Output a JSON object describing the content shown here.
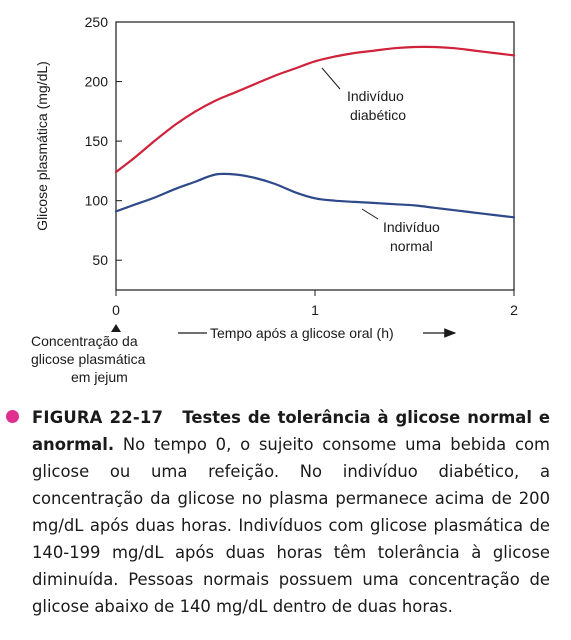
{
  "chart_data": {
    "type": "line",
    "ylabel": "Glicose plasmática (mg/dL)",
    "xlabel": "Tempo após a glicose oral (h)",
    "xlim": [
      0,
      2
    ],
    "ylim": [
      25,
      250
    ],
    "x_ticks": [
      "0",
      "1",
      "2"
    ],
    "y_ticks": [
      "50",
      "100",
      "150",
      "200",
      "250"
    ],
    "grid": false,
    "series": [
      {
        "name": "Indivíduo diabético",
        "color": "#d0223b",
        "x": [
          0,
          0.1,
          0.2,
          0.3,
          0.4,
          0.5,
          0.6,
          0.7,
          0.8,
          0.9,
          1.0,
          1.1,
          1.2,
          1.3,
          1.4,
          1.5,
          1.6,
          1.7,
          1.8,
          1.9,
          2.0
        ],
        "y": [
          124,
          137,
          151,
          164,
          175,
          184,
          191,
          198,
          205,
          211,
          217,
          221,
          224,
          226,
          228,
          229,
          229,
          228,
          226,
          224,
          222
        ]
      },
      {
        "name": "Indivíduo normal",
        "color": "#2f4a8a",
        "x": [
          0,
          0.1,
          0.2,
          0.3,
          0.4,
          0.5,
          0.6,
          0.7,
          0.8,
          0.9,
          1.0,
          1.1,
          1.2,
          1.3,
          1.4,
          1.5,
          1.6,
          1.7,
          1.8,
          1.9,
          2.0
        ],
        "y": [
          91,
          97,
          103,
          110,
          116,
          122,
          122,
          119,
          114,
          107,
          102,
          100,
          99,
          98,
          97,
          96,
          94,
          92,
          90,
          88,
          86
        ]
      }
    ],
    "annotations": {
      "diabetic_line1": "Indivíduo",
      "diabetic_line2": "diabético",
      "normal_line1": "Indivíduo",
      "normal_line2": "normal",
      "fasting_line1": "Concentração da",
      "fasting_line2": "glicose plasmática",
      "fasting_line3": "em jejum"
    }
  },
  "caption": {
    "label": "FIGURA 22-17",
    "title": "Testes de tolerância à glicose normal e anormal.",
    "body": "No tempo 0, o sujeito consome uma bebida com glicose ou uma refeição. No indivíduo diabético, a concentração da glicose no plasma permanece acima de 200 mg/dL após duas horas. Indivíduos com glicose plasmática de 140-199 mg/dL após duas horas têm tolerância à glicose diminuída. Pessoas normais possuem uma concentração de glicose abaixo de 140 mg/dL dentro de duas horas.",
    "bullet_color": "#e0308f"
  }
}
